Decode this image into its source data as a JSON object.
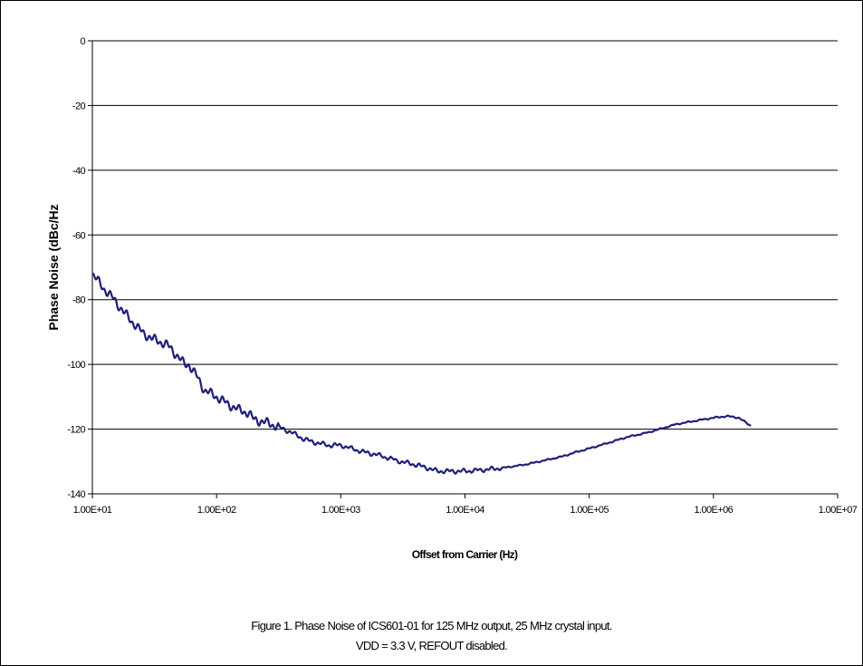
{
  "chart_data": {
    "type": "line",
    "xlabel": "Offset from Carrier (Hz)",
    "ylabel": "Phase Noise (dBc/Hz",
    "x_scale": "log",
    "xlim": [
      10,
      10000000
    ],
    "ylim": [
      -140,
      0
    ],
    "x_ticks": [
      10,
      100,
      1000,
      10000,
      100000,
      1000000,
      10000000
    ],
    "x_tick_labels": [
      "1.00E+01",
      "1.00E+02",
      "1.00E+03",
      "1.00E+04",
      "1.00E+05",
      "1.00E+06",
      "1.00E+07"
    ],
    "y_ticks": [
      0,
      -20,
      -40,
      -60,
      -80,
      -100,
      -120,
      -140
    ],
    "y_tick_labels": [
      "0",
      "-20",
      "-40",
      "-60",
      "-80",
      "-100",
      "-120",
      "-140"
    ],
    "grid": "horizontal",
    "legend": "none",
    "line_color": "#1f1f7a",
    "series": [
      {
        "x": [
          10,
          12,
          15,
          18,
          20,
          25,
          30,
          35,
          40,
          45,
          50,
          55,
          60,
          70,
          80,
          100,
          120,
          150,
          180,
          200,
          250,
          300,
          400,
          500,
          600,
          800,
          1000,
          1500,
          2000,
          3000,
          4000,
          5000,
          6000,
          8000,
          10000,
          15000,
          20000,
          30000,
          40000,
          60000,
          80000,
          100000,
          150000,
          200000,
          300000,
          500000,
          700000,
          1000000,
          1300000,
          1600000,
          2000000
        ],
        "y": [
          -72,
          -76,
          -80,
          -84,
          -86,
          -90,
          -92,
          -93,
          -94,
          -96,
          -98,
          -100,
          -100,
          -104,
          -108,
          -110,
          -112,
          -114,
          -115,
          -117,
          -118,
          -119,
          -121,
          -123,
          -124,
          -125,
          -125,
          -127,
          -128,
          -130,
          -131,
          -132,
          -133,
          -133,
          -133,
          -132.5,
          -132,
          -131,
          -130,
          -128.5,
          -127,
          -126,
          -124,
          -122.5,
          -121,
          -118.5,
          -117.5,
          -116.5,
          -116,
          -116.5,
          -119
        ]
      }
    ]
  },
  "caption": {
    "line1": "Figure 1. Phase Noise of ICS601-01 for 125 MHz output, 25 MHz crystal input.",
    "line2": "VDD = 3.3 V, REFOUT disabled."
  }
}
